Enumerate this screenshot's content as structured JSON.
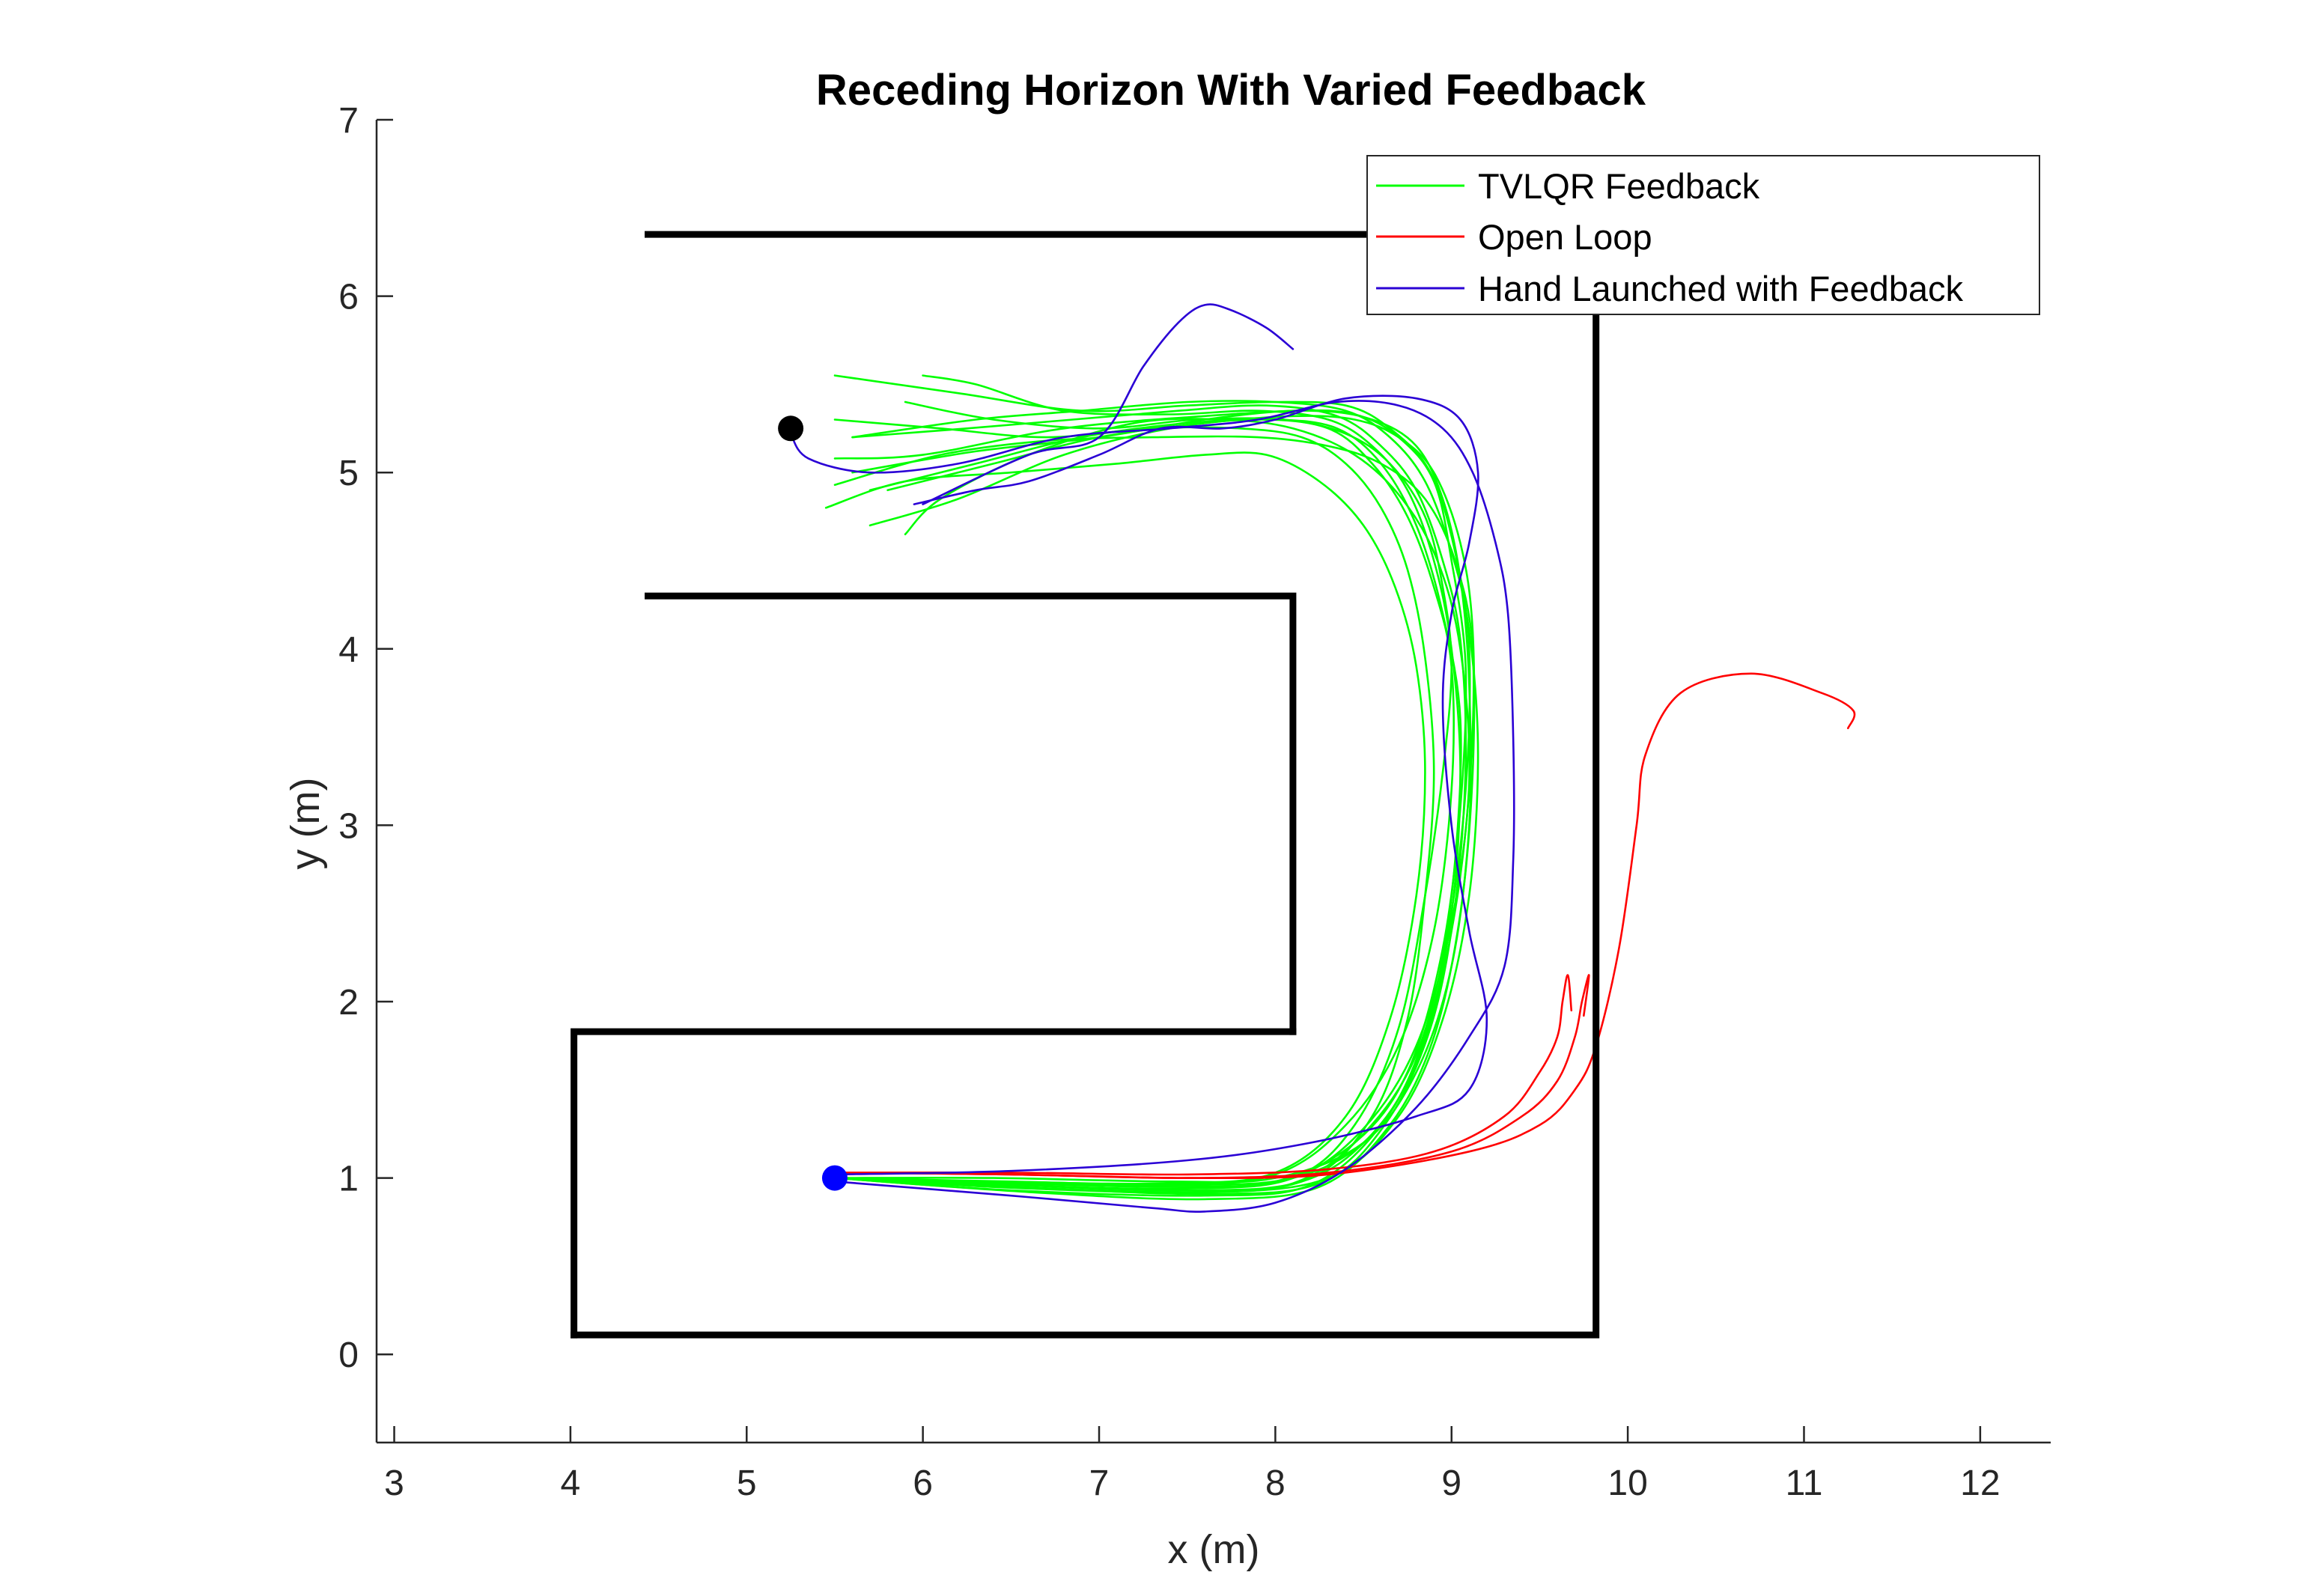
{
  "chart_data": {
    "type": "line",
    "title": "Receding Horizon With Varied Feedback",
    "xlabel": "x (m)",
    "ylabel": "y (m)",
    "xlim": [
      2.9,
      12.4
    ],
    "ylim": [
      -0.5,
      7
    ],
    "xticks": [
      3,
      4,
      5,
      6,
      7,
      8,
      9,
      10,
      11,
      12
    ],
    "yticks": [
      0,
      1,
      2,
      3,
      4,
      5,
      6,
      7
    ],
    "grid": false,
    "legend_position": "top-right",
    "colors": {
      "tvlqr": "#00ff00",
      "open_loop": "#ff0000",
      "hand": "#2a00d5",
      "walls": "#000000",
      "start_marker": "#0000ff",
      "goal_marker": "#000000"
    },
    "walls": [
      {
        "name": "top-wall",
        "x": [
          4.44,
          9.82
        ],
        "y": [
          6.35,
          6.35
        ]
      },
      {
        "name": "right-wall",
        "x": [
          9.82,
          9.82,
          4.02
        ],
        "y": [
          6.35,
          0.11,
          0.11
        ]
      },
      {
        "name": "outer-left-wall",
        "x": [
          4.02,
          4.02,
          8.1
        ],
        "y": [
          0.11,
          1.83,
          1.83
        ]
      },
      {
        "name": "inner-block",
        "x": [
          8.1,
          8.1,
          4.44
        ],
        "y": [
          1.83,
          4.3,
          4.3
        ]
      }
    ],
    "markers": [
      {
        "name": "start",
        "x": 5.5,
        "y": 1.0
      },
      {
        "name": "goal",
        "x": 5.25,
        "y": 5.25
      }
    ],
    "series": [
      {
        "name": "TVLQR Feedback",
        "color": "#00ff00",
        "trajectories": [
          {
            "x": [
              5.5,
              6.4,
              7.4,
              8.0,
              8.5,
              8.8,
              9.0,
              9.1,
              9.1,
              9.05,
              8.95,
              8.8,
              8.55,
              8.2,
              7.6,
              6.8,
              6.0,
              5.5
            ],
            "y": [
              1.0,
              1.0,
              0.98,
              1.0,
              1.2,
              1.6,
              2.2,
              3.0,
              3.8,
              4.4,
              4.85,
              5.15,
              5.3,
              5.35,
              5.32,
              5.25,
              5.1,
              5.08
            ]
          },
          {
            "x": [
              5.5,
              6.5,
              7.4,
              8.0,
              8.45,
              8.75,
              8.95,
              9.05,
              9.08,
              9.0,
              8.9,
              8.7,
              8.45,
              8.1,
              7.6,
              7.0,
              6.3,
              5.6
            ],
            "y": [
              1.0,
              0.97,
              0.95,
              0.98,
              1.2,
              1.6,
              2.3,
              3.1,
              3.9,
              4.5,
              4.95,
              5.2,
              5.33,
              5.35,
              5.3,
              5.2,
              5.12,
              5.0
            ]
          },
          {
            "x": [
              5.5,
              6.4,
              7.5,
              8.1,
              8.5,
              8.8,
              8.98,
              9.08,
              9.1,
              9.02,
              8.88,
              8.65,
              8.4,
              8.0,
              7.5,
              6.9,
              6.2,
              5.5
            ],
            "y": [
              1.0,
              0.95,
              0.92,
              0.97,
              1.25,
              1.7,
              2.4,
              3.2,
              4.0,
              4.55,
              5.0,
              5.25,
              5.38,
              5.4,
              5.38,
              5.35,
              5.45,
              5.55
            ]
          },
          {
            "x": [
              5.5,
              6.5,
              7.6,
              8.2,
              8.6,
              8.85,
              9.0,
              9.05,
              9.0,
              8.9,
              8.75,
              8.55,
              8.3,
              7.9,
              7.4,
              6.8,
              6.3,
              6.0
            ],
            "y": [
              1.0,
              0.93,
              0.9,
              0.96,
              1.3,
              1.8,
              2.5,
              3.3,
              4.0,
              4.5,
              4.9,
              5.15,
              5.3,
              5.35,
              5.33,
              5.35,
              5.5,
              5.55
            ]
          },
          {
            "x": [
              5.5,
              6.6,
              7.6,
              8.25,
              8.65,
              8.9,
              9.05,
              9.12,
              9.12,
              9.05,
              8.9,
              8.7,
              8.45,
              8.1,
              7.6,
              7.0,
              6.4,
              5.8
            ],
            "y": [
              1.0,
              0.92,
              0.88,
              0.95,
              1.3,
              1.8,
              2.5,
              3.3,
              4.1,
              4.6,
              5.0,
              5.2,
              5.3,
              5.32,
              5.28,
              5.2,
              5.05,
              4.9
            ]
          },
          {
            "x": [
              5.5,
              6.5,
              7.5,
              8.15,
              8.55,
              8.82,
              9.0,
              9.1,
              9.12,
              9.02,
              8.85,
              8.6,
              8.3,
              7.9,
              7.3,
              6.7,
              6.1,
              5.5
            ],
            "y": [
              1.0,
              0.96,
              0.93,
              0.98,
              1.25,
              1.7,
              2.4,
              3.2,
              4.0,
              4.5,
              4.85,
              5.05,
              5.15,
              5.2,
              5.2,
              5.18,
              5.1,
              4.93
            ]
          },
          {
            "x": [
              5.5,
              6.5,
              7.6,
              8.3,
              8.7,
              8.95,
              9.1,
              9.15,
              9.1,
              9.0,
              8.85,
              8.65,
              8.4,
              8.0,
              7.5,
              6.9,
              6.3,
              5.6
            ],
            "y": [
              1.0,
              0.95,
              0.92,
              1.0,
              1.35,
              1.9,
              2.6,
              3.4,
              4.1,
              4.55,
              4.95,
              5.2,
              5.35,
              5.4,
              5.4,
              5.35,
              5.3,
              5.2
            ]
          },
          {
            "x": [
              5.5,
              6.4,
              7.4,
              8.0,
              8.4,
              8.7,
              8.9,
              9.0,
              9.0,
              8.9,
              8.75,
              8.55,
              8.3,
              7.9,
              7.4,
              6.8,
              6.2,
              5.7
            ],
            "y": [
              1.0,
              0.97,
              0.96,
              1.02,
              1.3,
              1.75,
              2.4,
              3.2,
              3.9,
              4.35,
              4.75,
              5.05,
              5.25,
              5.3,
              5.25,
              5.1,
              4.85,
              4.7
            ]
          },
          {
            "x": [
              5.5,
              6.5,
              7.5,
              8.1,
              8.5,
              8.75,
              8.92,
              9.02,
              9.05,
              8.95,
              8.8,
              8.6,
              8.35,
              8.0,
              7.5,
              6.9,
              6.3,
              5.7
            ],
            "y": [
              1.0,
              0.98,
              0.96,
              1.0,
              1.2,
              1.55,
              2.1,
              2.8,
              3.6,
              4.2,
              4.7,
              5.05,
              5.25,
              5.3,
              5.28,
              5.2,
              5.05,
              4.9
            ]
          },
          {
            "x": [
              5.5,
              6.5,
              7.5,
              8.1,
              8.45,
              8.7,
              8.85,
              8.95,
              9.0,
              8.95,
              8.85,
              8.65,
              8.4,
              8.05,
              7.55,
              7.0,
              6.4,
              5.9
            ],
            "y": [
              1.0,
              0.96,
              0.94,
              1.0,
              1.3,
              1.85,
              2.6,
              3.3,
              3.9,
              4.35,
              4.75,
              5.05,
              5.22,
              5.3,
              5.3,
              5.25,
              5.3,
              5.4
            ]
          },
          {
            "x": [
              5.5,
              6.6,
              7.6,
              8.2,
              8.55,
              8.75,
              8.85,
              8.9,
              8.85,
              8.75,
              8.6,
              8.4,
              8.15,
              7.8,
              7.3,
              6.7,
              6.1,
              5.5
            ],
            "y": [
              1.0,
              0.94,
              0.92,
              1.0,
              1.35,
              1.9,
              2.6,
              3.3,
              3.95,
              4.45,
              4.8,
              5.05,
              5.2,
              5.25,
              5.25,
              5.2,
              5.25,
              5.3
            ]
          },
          {
            "x": [
              5.5,
              6.4,
              7.4,
              8.0,
              8.4,
              8.65,
              8.8,
              8.85,
              8.8,
              8.68,
              8.5,
              8.25,
              7.95,
              7.6,
              7.1,
              6.5,
              5.9,
              5.45
            ],
            "y": [
              1.0,
              0.98,
              0.97,
              1.03,
              1.35,
              1.9,
              2.6,
              3.3,
              3.9,
              4.35,
              4.7,
              4.95,
              5.1,
              5.1,
              5.05,
              5.0,
              4.95,
              4.8
            ]
          },
          {
            "x": [
              5.5,
              6.5,
              7.5,
              8.1,
              8.5,
              8.8,
              9.0,
              9.1,
              9.05,
              8.92,
              8.72,
              8.45,
              8.1,
              7.7,
              7.2,
              6.6,
              6.1,
              5.9
            ],
            "y": [
              1.0,
              0.97,
              0.95,
              1.0,
              1.28,
              1.75,
              2.45,
              3.25,
              4.0,
              4.5,
              4.85,
              5.1,
              5.25,
              5.3,
              5.28,
              5.1,
              4.85,
              4.65
            ]
          },
          {
            "x": [
              5.5,
              6.5,
              7.6,
              8.25,
              8.62,
              8.88,
              9.02,
              9.08,
              9.05,
              8.95,
              8.8,
              8.6,
              8.35,
              7.95,
              7.45,
              6.85,
              6.25,
              5.6
            ],
            "y": [
              1.0,
              0.95,
              0.91,
              0.97,
              1.3,
              1.85,
              2.55,
              3.35,
              4.05,
              4.5,
              4.9,
              5.15,
              5.32,
              5.38,
              5.35,
              5.3,
              5.25,
              5.2
            ]
          }
        ]
      },
      {
        "name": "Open Loop",
        "color": "#ff0000",
        "trajectories": [
          {
            "x": [
              5.5,
              6.5,
              7.5,
              8.3,
              8.9,
              9.3,
              9.5,
              9.6,
              9.63,
              9.66,
              9.68
            ],
            "y": [
              1.03,
              1.03,
              1.02,
              1.05,
              1.15,
              1.35,
              1.6,
              1.8,
              2.0,
              2.15,
              1.95
            ]
          },
          {
            "x": [
              5.5,
              6.5,
              7.5,
              8.3,
              9.0,
              9.4,
              9.6,
              9.7,
              9.74,
              9.78,
              9.75
            ],
            "y": [
              1.03,
              1.02,
              1.0,
              1.03,
              1.15,
              1.35,
              1.55,
              1.8,
              2.0,
              2.15,
              1.92
            ]
          },
          {
            "x": [
              5.5,
              6.5,
              7.5,
              8.3,
              9.1,
              9.5,
              9.7,
              9.82,
              9.95,
              10.05,
              10.1,
              10.3,
              10.7,
              11.1,
              11.28,
              11.25
            ],
            "y": [
              1.03,
              1.02,
              1.0,
              1.02,
              1.15,
              1.3,
              1.5,
              1.75,
              2.3,
              3.0,
              3.4,
              3.75,
              3.86,
              3.75,
              3.65,
              3.55
            ]
          }
        ]
      },
      {
        "name": "Hand Launched with Feedback",
        "color": "#2a00d5",
        "trajectories": [
          {
            "x": [
              5.5,
              6.5,
              7.3,
              7.6,
              8.0,
              8.4,
              8.8,
              9.1,
              9.3,
              9.35,
              9.35,
              9.32,
              9.25,
              9.12,
              8.95,
              8.7,
              8.35,
              7.9,
              7.4,
              6.8,
              6.2,
              5.7,
              5.35,
              5.25
            ],
            "y": [
              0.98,
              0.9,
              0.83,
              0.81,
              0.86,
              1.05,
              1.4,
              1.8,
              2.2,
              2.8,
              3.5,
              4.2,
              4.6,
              5.0,
              5.25,
              5.38,
              5.4,
              5.3,
              5.25,
              5.2,
              5.05,
              5.0,
              5.08,
              5.22
            ]
          },
          {
            "x": [
              5.5,
              6.5,
              7.5,
              8.2,
              8.8,
              9.1,
              9.2,
              9.1,
              9.0,
              8.95,
              9.0,
              9.1,
              9.15,
              9.05,
              8.8,
              8.4,
              8.0,
              7.7,
              7.35,
              7.0,
              6.6,
              6.3,
              5.95
            ],
            "y": [
              1.02,
              1.04,
              1.1,
              1.2,
              1.35,
              1.5,
              1.9,
              2.4,
              3.0,
              3.7,
              4.2,
              4.6,
              5.0,
              5.3,
              5.42,
              5.42,
              5.3,
              5.25,
              5.25,
              5.1,
              4.95,
              4.9,
              4.82
            ]
          },
          {
            "x": [
              6.0,
              6.6,
              7.0,
              7.25,
              7.45,
              7.6,
              7.75,
              7.95,
              8.1
            ],
            "y": [
              4.82,
              5.1,
              5.2,
              5.6,
              5.85,
              5.95,
              5.92,
              5.82,
              5.7
            ]
          }
        ]
      }
    ]
  }
}
